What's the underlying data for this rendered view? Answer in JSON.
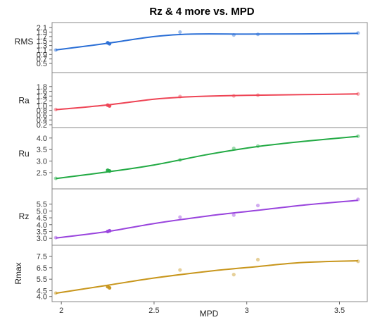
{
  "chart_data": {
    "type": "scatter",
    "title": "Rz & 4 more vs. MPD",
    "xlabel": "MPD",
    "xlim": [
      1.95,
      3.65
    ],
    "xticks": [
      "2",
      "2.5",
      "3",
      "3.5"
    ],
    "xtick_values": [
      2,
      2.5,
      3,
      3.5
    ],
    "grid": false,
    "panels": [
      {
        "ylabel": "RMS",
        "color": "#2b6fd6",
        "ylim": [
          0.5,
          2.2
        ],
        "ytick_values": [
          0.5,
          0.7,
          0.9,
          1.1,
          1.3,
          1.5,
          1.7,
          1.9,
          2.1
        ],
        "yticks": [
          "0.5",
          "0.7",
          "0.9",
          "1.1",
          "1.3",
          "1.5",
          "1.7",
          "1.9",
          "2.1"
        ],
        "points": [
          [
            1.97,
            1.1
          ],
          [
            2.25,
            1.42
          ],
          [
            2.26,
            1.38
          ],
          [
            2.64,
            1.9
          ],
          [
            2.93,
            1.77
          ],
          [
            3.06,
            1.8
          ],
          [
            3.6,
            1.86
          ]
        ],
        "fit": [
          [
            1.97,
            1.1
          ],
          [
            2.25,
            1.4
          ],
          [
            2.5,
            1.7
          ],
          [
            2.7,
            1.81
          ],
          [
            3.0,
            1.81
          ],
          [
            3.3,
            1.82
          ],
          [
            3.6,
            1.84
          ]
        ]
      },
      {
        "ylabel": "Ra",
        "color": "#ee4455",
        "ylim": [
          0.2,
          2.0
        ],
        "ytick_values": [
          0.2,
          0.4,
          0.6,
          0.8,
          1.0,
          1.2,
          1.4,
          1.6,
          1.8
        ],
        "yticks": [
          "0.2",
          "0.4",
          "0.6",
          "0.8",
          "1.0",
          "1.2",
          "1.4",
          "1.6",
          "1.8"
        ],
        "points": [
          [
            1.97,
            0.84
          ],
          [
            2.25,
            1.02
          ],
          [
            2.26,
            0.99
          ],
          [
            2.64,
            1.38
          ],
          [
            2.93,
            1.41
          ],
          [
            3.06,
            1.44
          ],
          [
            3.6,
            1.49
          ]
        ],
        "fit": [
          [
            1.97,
            0.83
          ],
          [
            2.25,
            1.03
          ],
          [
            2.5,
            1.27
          ],
          [
            2.7,
            1.37
          ],
          [
            3.0,
            1.43
          ],
          [
            3.3,
            1.46
          ],
          [
            3.6,
            1.49
          ]
        ]
      },
      {
        "ylabel": "Ru",
        "color": "#22aa44",
        "ylim": [
          2.1,
          4.3
        ],
        "ytick_values": [
          2.5,
          3.0,
          3.5,
          4.0
        ],
        "yticks": [
          "2.5",
          "3.0",
          "3.5",
          "4.0"
        ],
        "points": [
          [
            1.97,
            2.25
          ],
          [
            2.25,
            2.6
          ],
          [
            2.26,
            2.57
          ],
          [
            2.64,
            3.05
          ],
          [
            2.93,
            3.55
          ],
          [
            3.06,
            3.65
          ],
          [
            3.6,
            4.08
          ]
        ],
        "fit": [
          [
            1.97,
            2.24
          ],
          [
            2.25,
            2.53
          ],
          [
            2.5,
            2.83
          ],
          [
            2.8,
            3.3
          ],
          [
            3.06,
            3.63
          ],
          [
            3.3,
            3.85
          ],
          [
            3.6,
            4.07
          ]
        ]
      },
      {
        "ylabel": "Rz",
        "color": "#9944dd",
        "ylim": [
          2.7,
          6.1
        ],
        "ytick_values": [
          3.0,
          3.5,
          4.0,
          4.5,
          5.0,
          5.5
        ],
        "yticks": [
          "3.0",
          "3.5",
          "4.0",
          "4.5",
          "5.0",
          "5.5"
        ],
        "points": [
          [
            1.97,
            3.05
          ],
          [
            2.25,
            3.5
          ],
          [
            2.26,
            3.55
          ],
          [
            2.64,
            4.55
          ],
          [
            2.93,
            4.7
          ],
          [
            3.06,
            5.4
          ],
          [
            3.6,
            5.85
          ]
        ],
        "fit": [
          [
            1.97,
            3.02
          ],
          [
            2.25,
            3.5
          ],
          [
            2.5,
            4.08
          ],
          [
            2.8,
            4.65
          ],
          [
            3.06,
            5.05
          ],
          [
            3.3,
            5.42
          ],
          [
            3.6,
            5.78
          ]
        ]
      },
      {
        "ylabel": "Rmax",
        "color": "#c8961c",
        "ylim": [
          3.8,
          8.2
        ],
        "ytick_values": [
          4.0,
          4.5,
          5.5,
          6.5,
          7.5
        ],
        "yticks": [
          "4.0",
          "4.5",
          "5.5",
          "6.5",
          "7.5"
        ],
        "points": [
          [
            1.97,
            4.3
          ],
          [
            2.25,
            4.85
          ],
          [
            2.26,
            4.75
          ],
          [
            2.64,
            6.3
          ],
          [
            2.93,
            5.9
          ],
          [
            3.06,
            7.2
          ],
          [
            3.6,
            7.05
          ]
        ],
        "fit": [
          [
            1.97,
            4.28
          ],
          [
            2.25,
            4.98
          ],
          [
            2.5,
            5.6
          ],
          [
            2.8,
            6.2
          ],
          [
            3.06,
            6.6
          ],
          [
            3.3,
            6.95
          ],
          [
            3.6,
            7.1
          ]
        ]
      }
    ]
  }
}
